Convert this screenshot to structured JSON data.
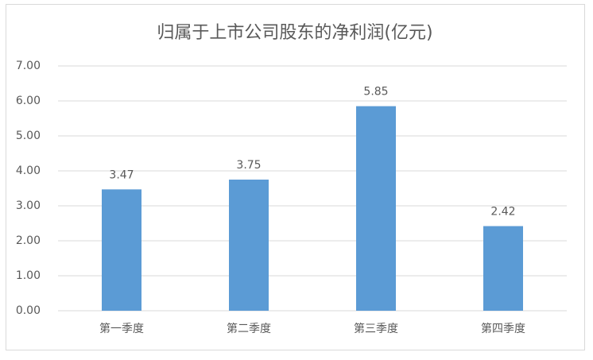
{
  "chart_data": {
    "type": "bar",
    "title": "归属于上市公司股东的净利润(亿元)",
    "categories": [
      "第一季度",
      "第二季度",
      "第三季度",
      "第四季度"
    ],
    "values": [
      3.47,
      3.75,
      5.85,
      2.42
    ],
    "color": "#5b9bd5",
    "ylim": [
      0,
      7
    ],
    "yticks": [
      {
        "value": 0,
        "label": "0.00"
      },
      {
        "value": 1,
        "label": "1.00"
      },
      {
        "value": 2,
        "label": "2.00"
      },
      {
        "value": 3,
        "label": "3.00"
      },
      {
        "value": 4,
        "label": "4.00"
      },
      {
        "value": 5,
        "label": "5.00"
      },
      {
        "value": 6,
        "label": "6.00"
      },
      {
        "value": 7,
        "label": "7.00"
      }
    ],
    "grid": true
  }
}
